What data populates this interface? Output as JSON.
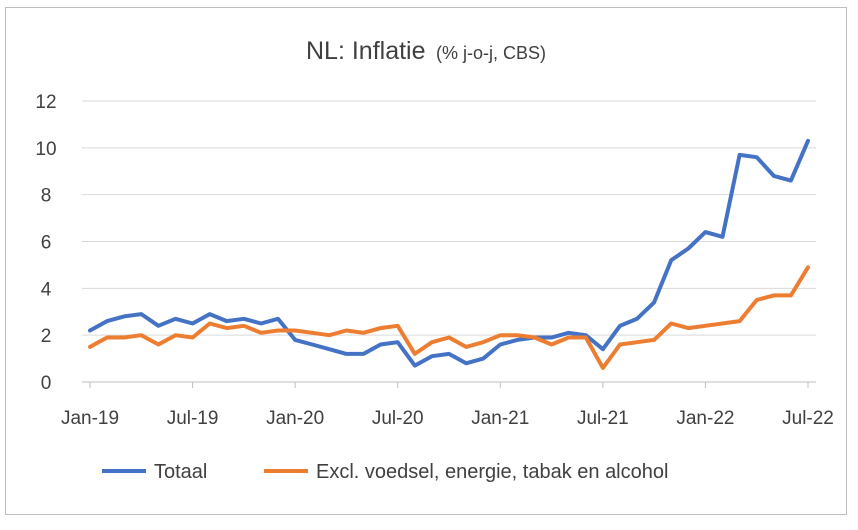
{
  "chart_data": {
    "type": "line",
    "title": "NL: Inflatie",
    "subtitle": "(% j-o-j, CBS)",
    "xlabel": "",
    "ylabel": "",
    "ylim": [
      0,
      12
    ],
    "yticks": [
      "0",
      "2",
      "4",
      "6",
      "8",
      "10",
      "12"
    ],
    "categories": [
      "Jan-19",
      "Feb-19",
      "Mar-19",
      "Apr-19",
      "May-19",
      "Jun-19",
      "Jul-19",
      "Aug-19",
      "Sep-19",
      "Oct-19",
      "Nov-19",
      "Dec-19",
      "Jan-20",
      "Feb-20",
      "Mar-20",
      "Apr-20",
      "May-20",
      "Jun-20",
      "Jul-20",
      "Aug-20",
      "Sep-20",
      "Oct-20",
      "Nov-20",
      "Dec-20",
      "Jan-21",
      "Feb-21",
      "Mar-21",
      "Apr-21",
      "May-21",
      "Jun-21",
      "Jul-21",
      "Aug-21",
      "Sep-21",
      "Oct-21",
      "Nov-21",
      "Dec-21",
      "Jan-22",
      "Feb-22",
      "Mar-22",
      "Apr-22",
      "May-22",
      "Jun-22",
      "Jul-22"
    ],
    "xtick_labels": [
      "Jan-19",
      "Jul-19",
      "Jan-20",
      "Jul-20",
      "Jan-21",
      "Jul-21",
      "Jan-22",
      "Jul-22"
    ],
    "xtick_indices": [
      0,
      6,
      12,
      18,
      24,
      30,
      36,
      42
    ],
    "grid": true,
    "legend_position": "bottom",
    "series": [
      {
        "name": "Totaal",
        "color": "#4472C4",
        "values": [
          2.2,
          2.6,
          2.8,
          2.9,
          2.4,
          2.7,
          2.5,
          2.9,
          2.6,
          2.7,
          2.5,
          2.7,
          1.8,
          1.6,
          1.4,
          1.2,
          1.2,
          1.6,
          1.7,
          0.7,
          1.1,
          1.2,
          0.8,
          1.0,
          1.6,
          1.8,
          1.9,
          1.9,
          2.1,
          2.0,
          1.4,
          2.4,
          2.7,
          3.4,
          5.2,
          5.7,
          6.4,
          6.2,
          9.7,
          9.6,
          8.8,
          8.6,
          10.3
        ]
      },
      {
        "name": "Excl. voedsel, energie, tabak en alcohol",
        "color": "#ED7D31",
        "values": [
          1.5,
          1.9,
          1.9,
          2.0,
          1.6,
          2.0,
          1.9,
          2.5,
          2.3,
          2.4,
          2.1,
          2.2,
          2.2,
          2.1,
          2.0,
          2.2,
          2.1,
          2.3,
          2.4,
          1.2,
          1.7,
          1.9,
          1.5,
          1.7,
          2.0,
          2.0,
          1.9,
          1.6,
          1.9,
          1.9,
          0.6,
          1.6,
          1.7,
          1.8,
          2.5,
          2.3,
          2.4,
          2.5,
          2.6,
          3.5,
          3.7,
          3.7,
          4.9
        ]
      }
    ]
  }
}
